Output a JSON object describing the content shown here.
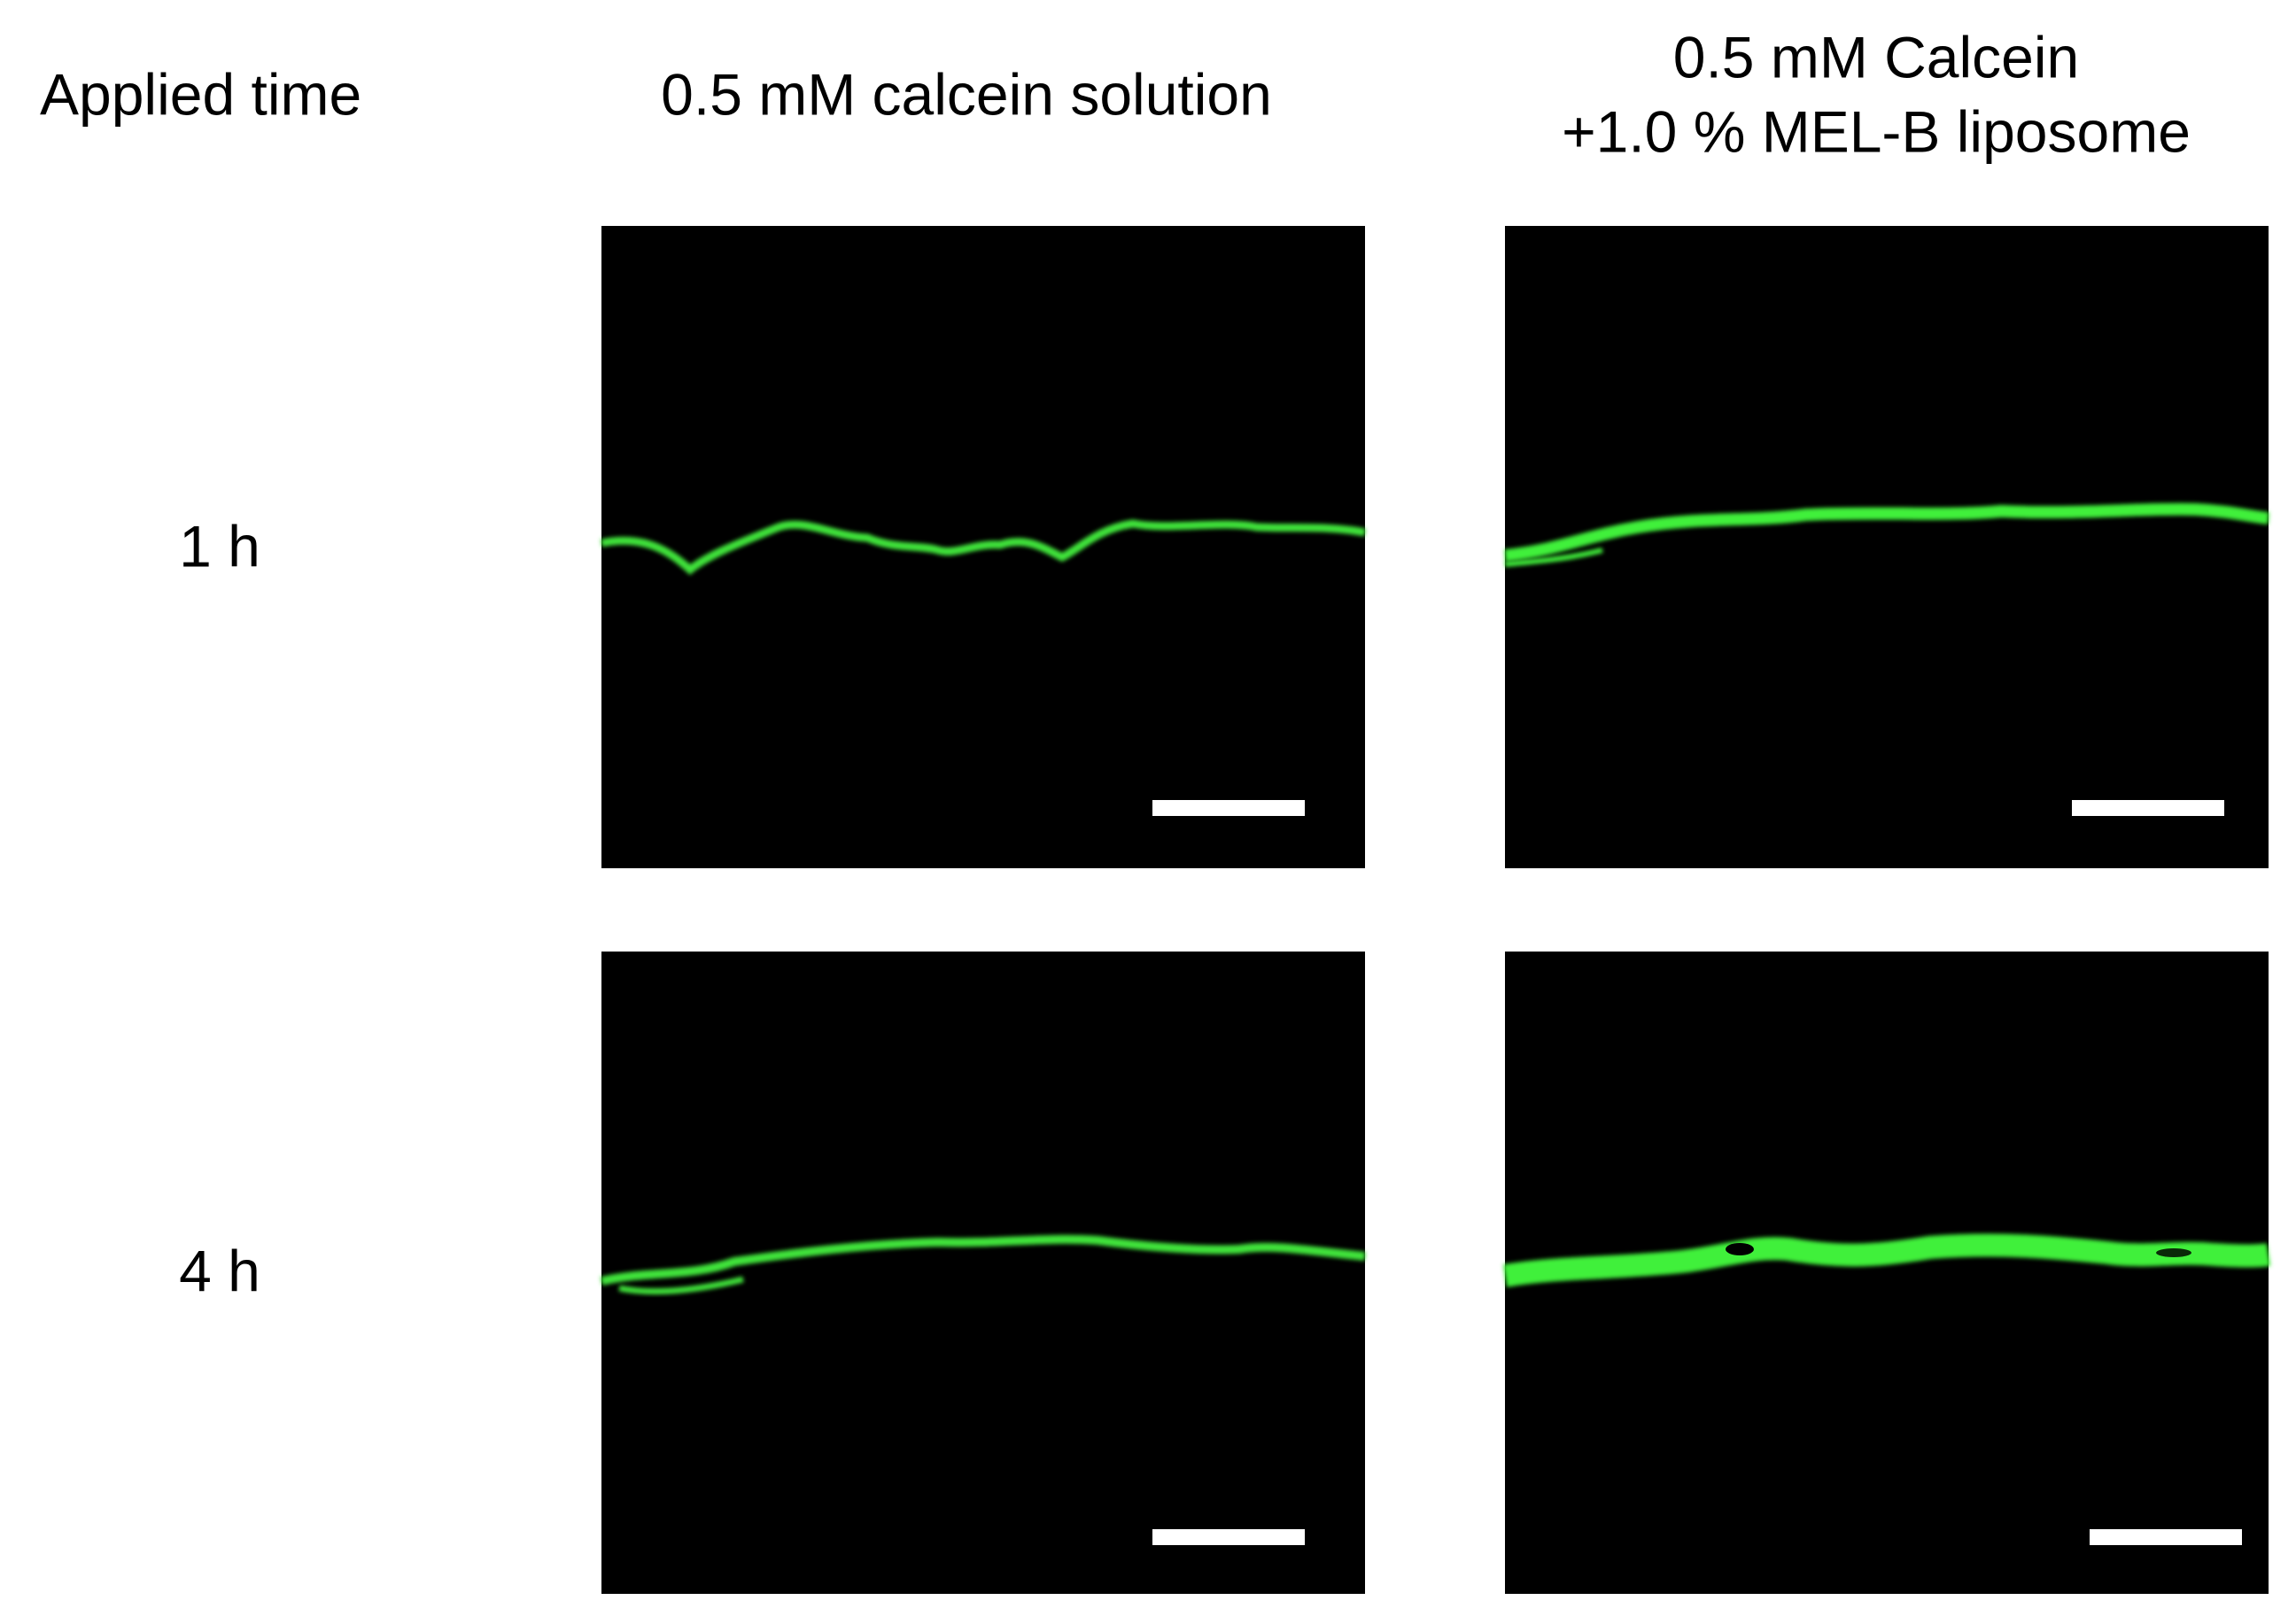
{
  "header": {
    "row_label": "Applied time",
    "columns": [
      {
        "lines": [
          "0.5 mM calcein solution"
        ]
      },
      {
        "lines": [
          "0.5 mM Calcein",
          "+1.0 % MEL-B liposome"
        ]
      }
    ]
  },
  "rows": [
    {
      "label": "1 h"
    },
    {
      "label": "4 h"
    }
  ]
}
